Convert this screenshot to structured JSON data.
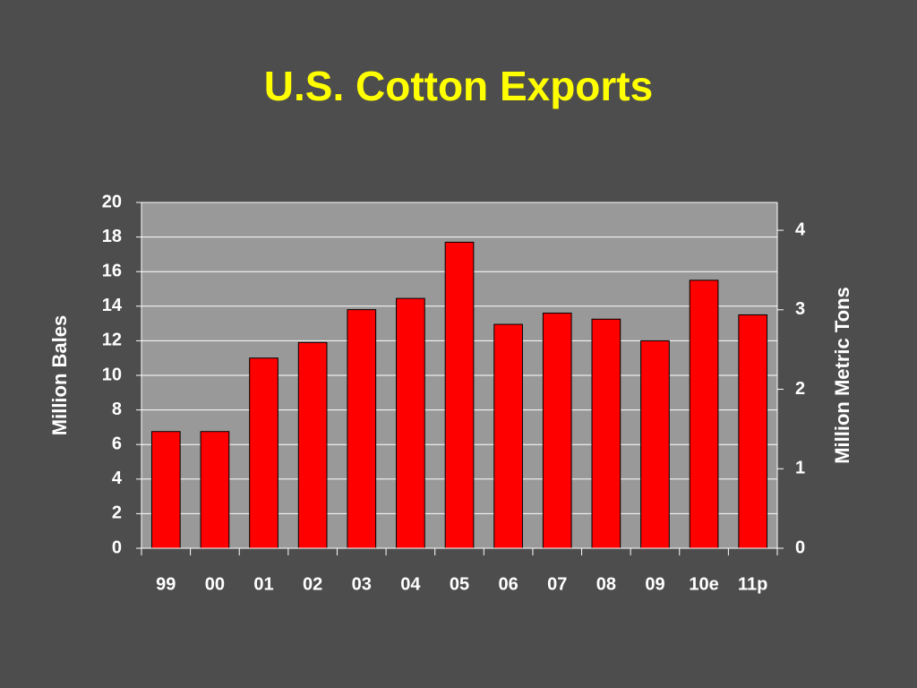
{
  "chart_data": {
    "type": "bar",
    "title": "U.S. Cotton Exports",
    "y_label": "Million Bales",
    "y2_label": "Million Metric Tons",
    "categories": [
      "99",
      "00",
      "01",
      "02",
      "03",
      "04",
      "05",
      "06",
      "07",
      "08",
      "09",
      "10e",
      "11p"
    ],
    "values": [
      6.75,
      6.75,
      11.0,
      11.9,
      13.8,
      14.45,
      17.7,
      12.95,
      13.6,
      13.25,
      12.0,
      15.5,
      13.5
    ],
    "color": "#ff0000",
    "ylim": [
      0,
      20
    ],
    "yticks": [
      0,
      2,
      4,
      6,
      8,
      10,
      12,
      14,
      16,
      18,
      20
    ],
    "y2lim": [
      0,
      4.35
    ],
    "y2ticks": [
      0,
      1,
      2,
      3,
      4
    ],
    "grid": true
  }
}
